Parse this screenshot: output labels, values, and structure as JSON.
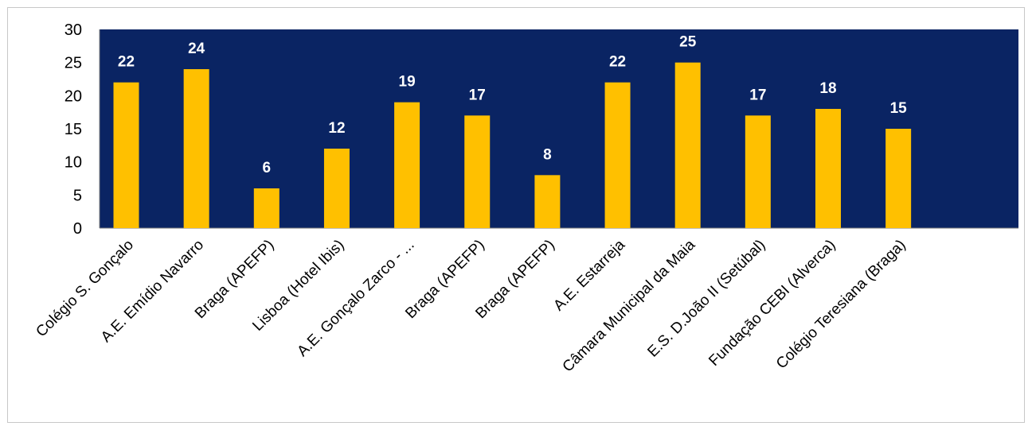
{
  "chart_data": {
    "type": "bar",
    "title": "",
    "xlabel": "",
    "ylabel": "",
    "ylim": [
      0,
      30
    ],
    "yticks": [
      0,
      5,
      10,
      15,
      20,
      25,
      30
    ],
    "grid": false,
    "legend": "none",
    "colors": {
      "plot_background": "#0a2463",
      "bar": "#ffc000",
      "data_label": "#ffffff"
    },
    "categories": [
      "Colégio S. Gonçalo",
      "A.E. Emídio Navarro",
      "Braga (APEFP)",
      "Lisboa (Hotel Ibis)",
      "A.E. Gonçalo Zarco - ...",
      "Braga (APEFP)",
      "Braga (APEFP)",
      "A.E. Estarreja",
      "Câmara Municipal da Maia",
      "E.S. D.João II (Setúbal)",
      "Fundação CEBI (Alverca)",
      "Colégio Teresiana (Braga)"
    ],
    "values": [
      22,
      24,
      6,
      12,
      19,
      17,
      8,
      22,
      25,
      17,
      18,
      15
    ]
  }
}
